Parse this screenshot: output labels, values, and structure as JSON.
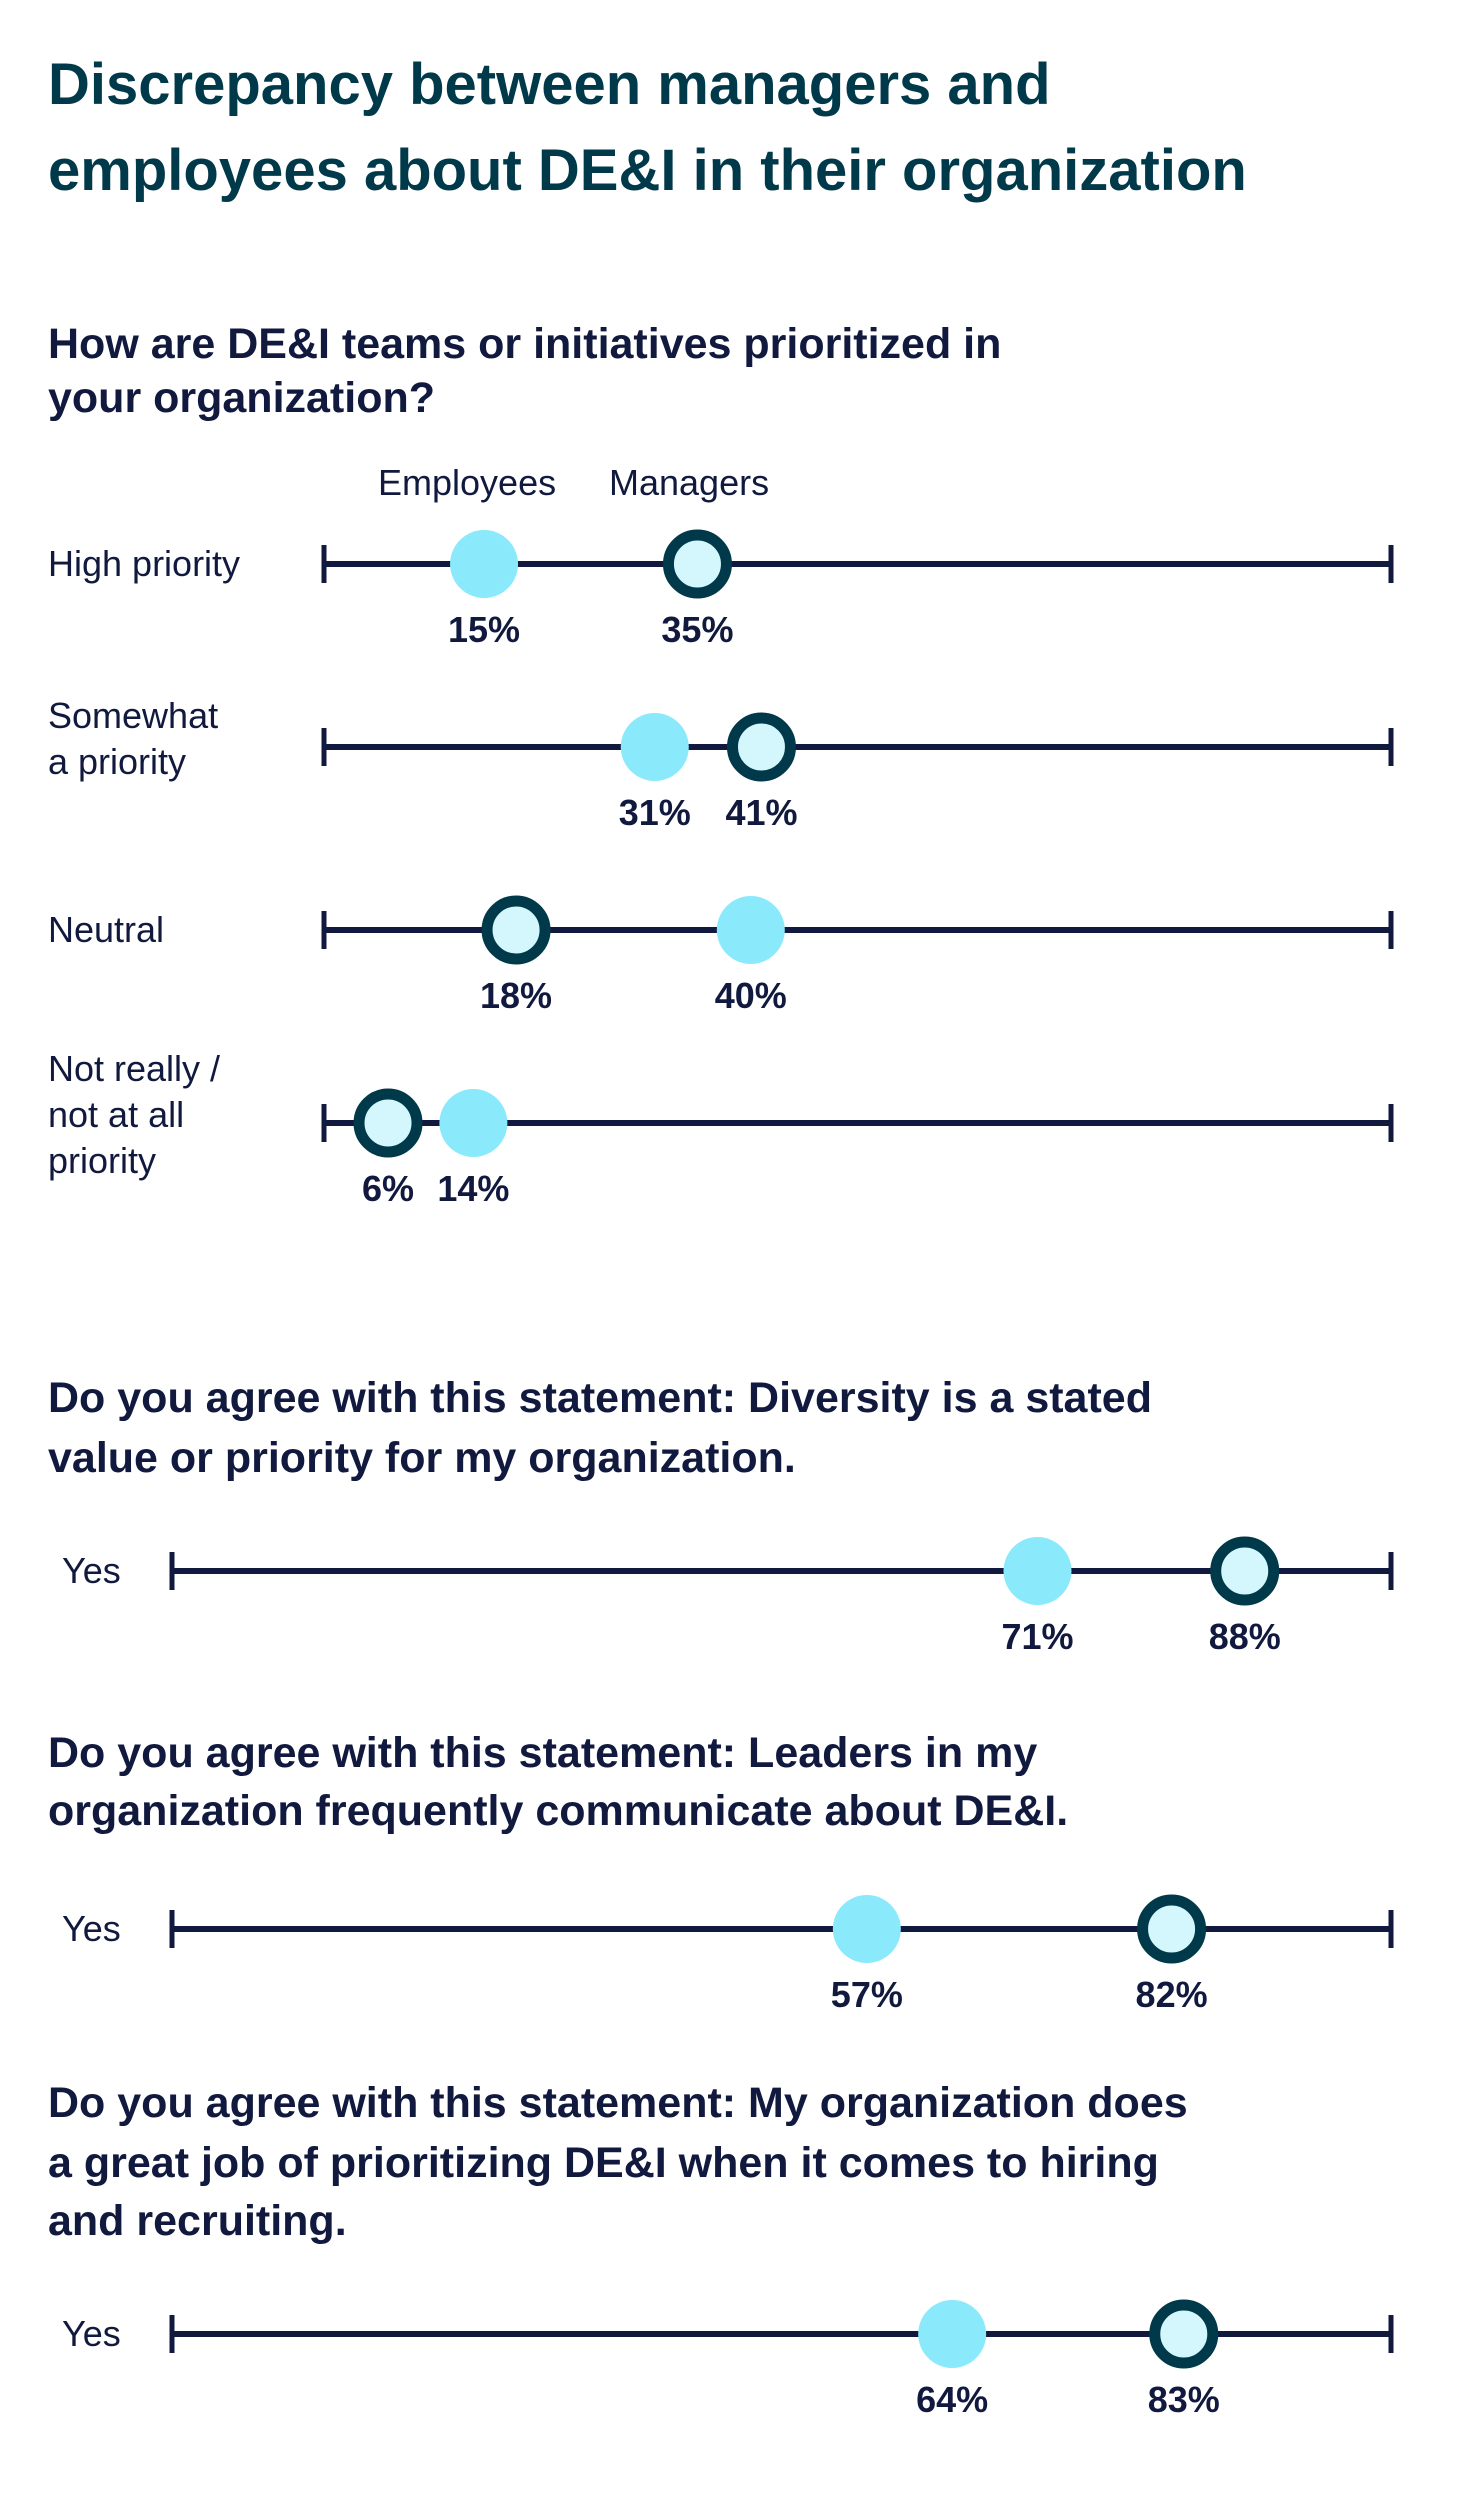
{
  "colors": {
    "employees_fill": "#8aeafc",
    "managers_stroke": "#003a4a",
    "managers_fill": "#d4f6fd",
    "axis": "#111a3e",
    "title": "#003a4a"
  },
  "chart_data": {
    "type": "dot-range",
    "title": [
      "Discrepancy between managers and",
      "employees about DE&I in their organization"
    ],
    "legend": {
      "employees": "Employees",
      "managers": "Managers"
    },
    "xlim": [
      0,
      100
    ],
    "grid": false,
    "panels": [
      {
        "question": [
          "How are DE&I teams or initiatives prioritized in",
          "your organization?"
        ],
        "rows": [
          {
            "label": [
              "High priority"
            ],
            "employees": 15,
            "managers": 35,
            "employees_label": "15%",
            "managers_label": "35%"
          },
          {
            "label": [
              "Somewhat",
              "a priority"
            ],
            "employees": 31,
            "managers": 41,
            "employees_label": "31%",
            "managers_label": "41%"
          },
          {
            "label": [
              "Neutral"
            ],
            "employees": 40,
            "managers": 18,
            "employees_label": "40%",
            "managers_label": "18%"
          },
          {
            "label": [
              "Not really /",
              "not at all",
              "priority"
            ],
            "employees": 14,
            "managers": 6,
            "employees_label": "14%",
            "managers_label": "6%"
          }
        ]
      },
      {
        "question": [
          "Do you agree with this statement: Diversity is a stated",
          "value or priority for my organization."
        ],
        "rows": [
          {
            "label": [
              "Yes"
            ],
            "employees": 71,
            "managers": 88,
            "employees_label": "71%",
            "managers_label": "88%"
          }
        ]
      },
      {
        "question": [
          "Do you agree with this statement: Leaders in my",
          "organization frequently communicate about DE&I."
        ],
        "rows": [
          {
            "label": [
              "Yes"
            ],
            "employees": 57,
            "managers": 82,
            "employees_label": "57%",
            "managers_label": "82%"
          }
        ]
      },
      {
        "question": [
          "Do you agree with this statement: My organization does",
          "a great job of prioritizing DE&I when it comes to hiring",
          "and recruiting."
        ],
        "rows": [
          {
            "label": [
              "Yes"
            ],
            "employees": 64,
            "managers": 83,
            "employees_label": "64%",
            "managers_label": "83%"
          }
        ]
      }
    ]
  }
}
